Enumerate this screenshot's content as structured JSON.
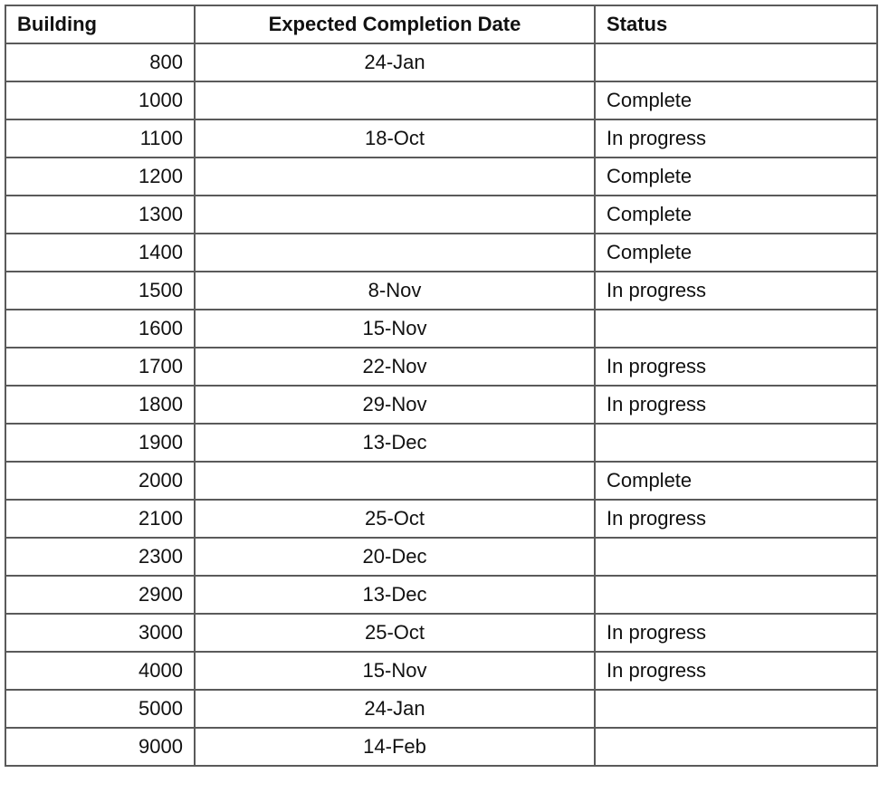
{
  "table": {
    "headers": [
      "Building",
      "Expected Completion Date",
      "Status"
    ],
    "rows": [
      [
        "800",
        "24-Jan",
        ""
      ],
      [
        "1000",
        "",
        "Complete"
      ],
      [
        "1100",
        "18-Oct",
        "In progress"
      ],
      [
        "1200",
        "",
        "Complete"
      ],
      [
        "1300",
        "",
        "Complete"
      ],
      [
        "1400",
        "",
        "Complete"
      ],
      [
        "1500",
        "8-Nov",
        "In progress"
      ],
      [
        "1600",
        "15-Nov",
        ""
      ],
      [
        "1700",
        "22-Nov",
        "In progress"
      ],
      [
        "1800",
        "29-Nov",
        "In progress"
      ],
      [
        "1900",
        "13-Dec",
        ""
      ],
      [
        "2000",
        "",
        "Complete"
      ],
      [
        "2100",
        "25-Oct",
        "In progress"
      ],
      [
        "2300",
        "20-Dec",
        ""
      ],
      [
        "2900",
        "13-Dec",
        ""
      ],
      [
        "3000",
        "25-Oct",
        "In progress"
      ],
      [
        "4000",
        "15-Nov",
        "In progress"
      ],
      [
        "5000",
        "24-Jan",
        ""
      ],
      [
        "9000",
        "14-Feb",
        ""
      ]
    ]
  }
}
